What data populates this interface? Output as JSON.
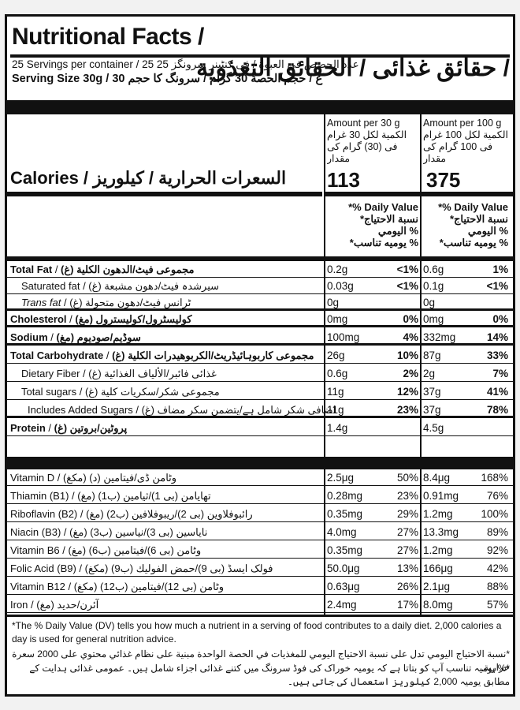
{
  "title": {
    "en": "Nutritional Facts /",
    "ar": "حقائق غذائى / الحقائق التغذوية /"
  },
  "servings_line": "25 Servings per container / 25 عدد الحصص في العبوة / فى كنٹینر سرونگز 25",
  "serving_size_line": "Serving Size 30g / 30 غ / حجم الحصة 30 گرام / سرونگ کا حجم",
  "columns": [
    {
      "header_en": "Amount per 30 g",
      "header_ar1": "الكمية لكل 30 غرام",
      "header_ar2": "فی (30) گرام کی مقدار",
      "calories": "113"
    },
    {
      "header_en": "Amount per 100 g",
      "header_ar1": "الكمية لكل 100 غرام",
      "header_ar2": "فی 100 گرام کی مقدار",
      "calories": "375"
    }
  ],
  "calories_label": "Calories / السعرات الحرارية / كيلوريز",
  "dv_header": {
    "l1": "*% Daily Value",
    "l2": "*نسبة الاحتياج",
    "l3": "اليومي %",
    "l4": "*يوميه تناسب %"
  },
  "nutrients": [
    {
      "en": "Total Fat",
      "ar": "مجموعى فيٹ/الدهون الكلية (غ)",
      "v1": "0.2g",
      "p1": "<1%",
      "v2": "0.6g",
      "p2": "1%",
      "style": "bold"
    },
    {
      "en": "Saturated fat",
      "ar": "سیرشدہ فیٹ/دهون مشبعة (غ)",
      "v1": "0.03g",
      "p1": "<1%",
      "v2": "0.1g",
      "p2": "<1%",
      "style": "ind"
    },
    {
      "en": "Trans fat",
      "ar": "ٹرانس فیٹ/دهون متحولة (غ)",
      "v1": "0g",
      "p1": "",
      "v2": "0g",
      "p2": "",
      "style": "ind-italic"
    },
    {
      "en": "Cholesterol",
      "ar": "كوليسٹرول/كوليسترول (مغ)",
      "v1": "0mg",
      "p1": "0%",
      "v2": "0mg",
      "p2": "0%",
      "style": "bold"
    },
    {
      "en": "Sodium",
      "ar": "سوڈيم/صوديوم (مغ)",
      "v1": "100mg",
      "p1": "4%",
      "v2": "332mg",
      "p2": "14%",
      "style": "bold"
    },
    {
      "en": "Total Carbohydrate",
      "ar": "مجموعى كاربوہائیڈریٹ/الكربوهيدرات الكلية (غ)",
      "v1": "26g",
      "p1": "10%",
      "v2": "87g",
      "p2": "33%",
      "style": "bold"
    },
    {
      "en": "Dietary Fiber",
      "ar": "غذائى فائبر/الألياف الغذائية (غ)",
      "v1": "0.6g",
      "p1": "2%",
      "v2": "2g",
      "p2": "7%",
      "style": "ind"
    },
    {
      "en": "Total sugars",
      "ar": "مجموعى شكر/سكريات كلية (غ)",
      "v1": "11g",
      "p1": "12%",
      "v2": "37g",
      "p2": "41%",
      "style": "ind"
    },
    {
      "en": "Includes Added Sugars",
      "ar": "اضافى شكر شامل ہے/يتضمن سكر مضاف (غ)",
      "v1": "11g",
      "p1": "23%",
      "v2": "37g",
      "p2": "78%",
      "style": "ind2"
    },
    {
      "en": "Protein",
      "ar": "پروٹین/بروتين (غ)",
      "v1": "1.4g",
      "p1": "",
      "v2": "4.5g",
      "p2": "",
      "style": "bold"
    }
  ],
  "vitamins": [
    {
      "en": "Vitamin D",
      "ar": "وٹامن ڈی/فيتامين (د) (مكغ)",
      "v1": "2.5μg",
      "p1": "50%",
      "v2": "8.4μg",
      "p2": "168%"
    },
    {
      "en": "Thiamin (B1)",
      "ar": "تھایامن (بی 1)/ثيامين (ب1) (مغ)",
      "v1": "0.28mg",
      "p1": "23%",
      "v2": "0.91mg",
      "p2": "76%"
    },
    {
      "en": "Riboflavin (B2)",
      "ar": "رائبوفلاوین (بی 2)/ريبوفلافين (ب2) (مغ)",
      "v1": "0.35mg",
      "p1": "29%",
      "v2": "1.2mg",
      "p2": "100%"
    },
    {
      "en": "Niacin (B3)",
      "ar": "نایاسین (بی 3)/نياسين (ب3) (مغ)",
      "v1": "4.0mg",
      "p1": "27%",
      "v2": "13.3mg",
      "p2": "89%"
    },
    {
      "en": "Vitamin B6",
      "ar": "وٹامن (بی 6)/فيتامين (ب6) (مغ)",
      "v1": "0.35mg",
      "p1": "27%",
      "v2": "1.2mg",
      "p2": "92%"
    },
    {
      "en": "Folic Acid (B9)",
      "ar": "فولک ایسڈ (بی 9)/حمض الفوليك (ب9) (مكغ)",
      "v1": "50.0μg",
      "p1": "13%",
      "v2": "166μg",
      "p2": "42%"
    },
    {
      "en": "Vitamin B12",
      "ar": "وٹامن (بی 12)/فيتامين (ب12) (مكغ)",
      "v1": "0.63μg",
      "p1": "26%",
      "v2": "2.1μg",
      "p2": "88%"
    },
    {
      "en": "Iron",
      "ar": "آئرن/حديد (مغ)",
      "v1": "2.4mg",
      "p1": "17%",
      "v2": "8.0mg",
      "p2": "57%"
    }
  ],
  "footnotes": [
    "*The % Daily Value (DV) tells you how much a nutrient in a serving of food contributes to a daily diet. 2,000 calories a day is used for general nutrition advice.",
    "*نسبة الاحتياج اليومي تدل على نسبة الاحتياج اليومي للمغذيات في الحصة الواحدة مبنية على نظام غذائي محتوي على 2000 سعرة حرارية.",
    "*% يوميہ تناسب آپ کو بتاتا ہے کہ یومیہ خوراک کی فوڈ سرونگ میں کتنے غذائی اجزاء شامل ہیں۔ عمومی غذائی ہدایت کے مطابق يوميہ 2,000 کیلوریز استعمال کی جاتی ہیں۔"
  ]
}
